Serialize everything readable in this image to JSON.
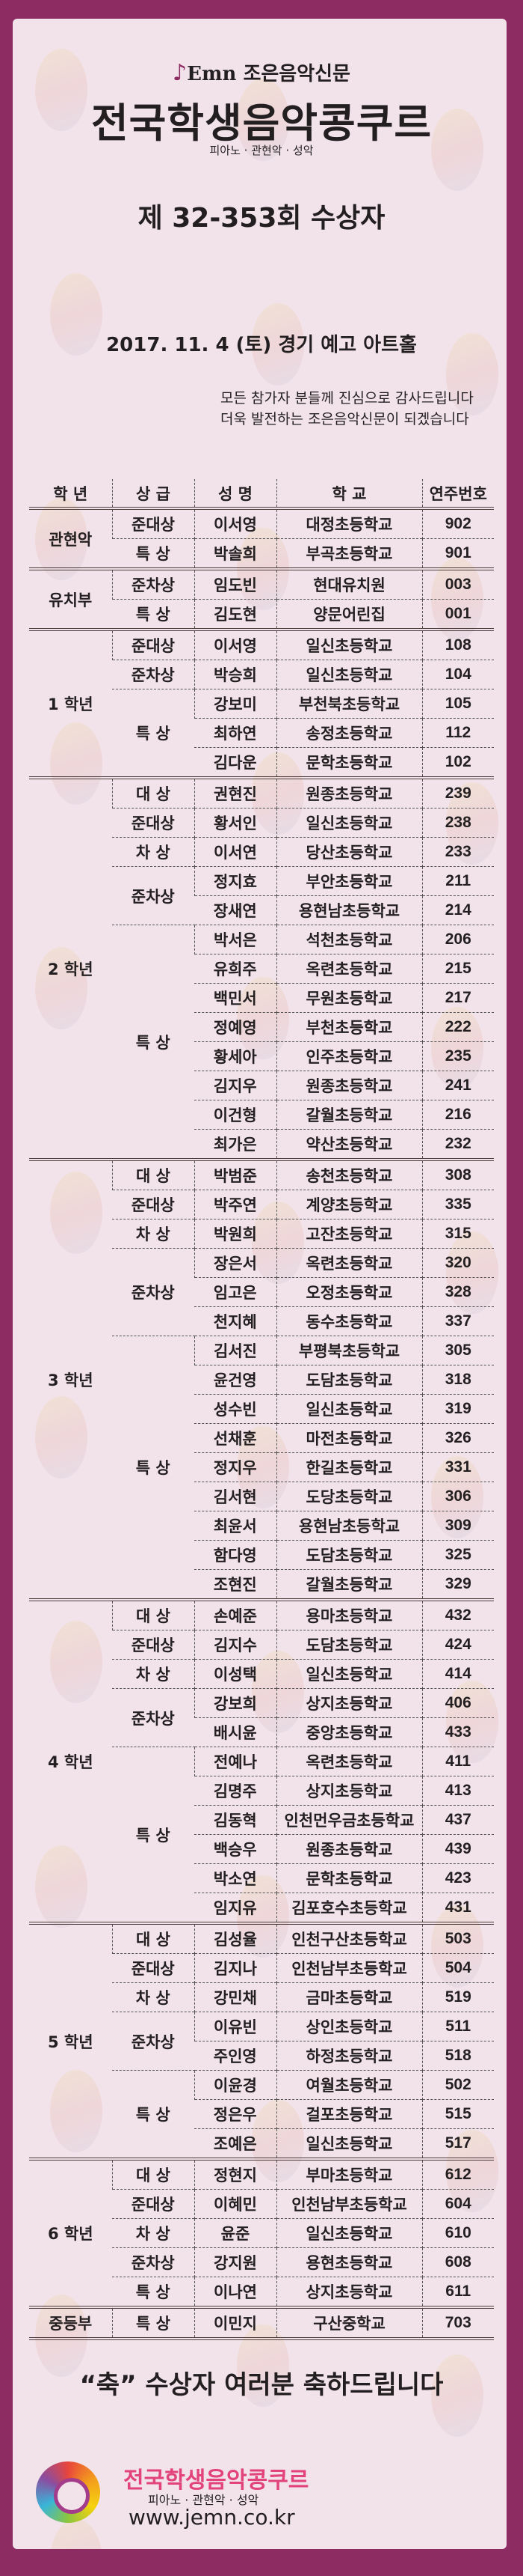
{
  "header": {
    "brand_mark": "Emn",
    "brand_name": "조은음악신문",
    "title": "전국학생음악콩쿠르",
    "subtitle": "피아노 · 관현악 · 성악",
    "round": "제 32-353회  수상자",
    "date_venue": "2017. 11. 4 (토)  경기 예고 아트홀",
    "thanks_1": "모든 참가자 분들께 진심으로 감사드립니다",
    "thanks_2": "더욱 발전하는 조은음악신문이 되겠습니다"
  },
  "table": {
    "columns": [
      "학  년",
      "상  급",
      "성  명",
      "학  교",
      "연주번호"
    ],
    "groups": [
      {
        "grade": "관현악",
        "awards": [
          {
            "award": "준대상",
            "entries": [
              {
                "name": "이서영",
                "school": "대정초등학교",
                "number": "902"
              }
            ]
          },
          {
            "award": "특  상",
            "entries": [
              {
                "name": "박솔희",
                "school": "부곡초등학교",
                "number": "901"
              }
            ]
          }
        ]
      },
      {
        "grade": "유치부",
        "awards": [
          {
            "award": "준차상",
            "entries": [
              {
                "name": "임도빈",
                "school": "현대유치원",
                "number": "003"
              }
            ]
          },
          {
            "award": "특  상",
            "entries": [
              {
                "name": "김도현",
                "school": "양문어린집",
                "number": "001"
              }
            ]
          }
        ]
      },
      {
        "grade": "1 학년",
        "awards": [
          {
            "award": "준대상",
            "entries": [
              {
                "name": "이서영",
                "school": "일신초등학교",
                "number": "108"
              }
            ]
          },
          {
            "award": "준차상",
            "entries": [
              {
                "name": "박승희",
                "school": "일신초등학교",
                "number": "104"
              }
            ]
          },
          {
            "award": "특  상",
            "entries": [
              {
                "name": "강보미",
                "school": "부천북초등학교",
                "number": "105"
              },
              {
                "name": "최하연",
                "school": "송정초등학교",
                "number": "112"
              },
              {
                "name": "김다운",
                "school": "문학초등학교",
                "number": "102"
              }
            ]
          }
        ]
      },
      {
        "grade": "2 학년",
        "awards": [
          {
            "award": "대  상",
            "entries": [
              {
                "name": "권현진",
                "school": "원종초등학교",
                "number": "239"
              }
            ]
          },
          {
            "award": "준대상",
            "entries": [
              {
                "name": "황서인",
                "school": "일신초등학교",
                "number": "238"
              }
            ]
          },
          {
            "award": "차  상",
            "entries": [
              {
                "name": "이서연",
                "school": "당산초등학교",
                "number": "233"
              }
            ]
          },
          {
            "award": "준차상",
            "entries": [
              {
                "name": "정지효",
                "school": "부안초등학교",
                "number": "211"
              },
              {
                "name": "장새연",
                "school": "용현남초등학교",
                "number": "214"
              }
            ]
          },
          {
            "award": "특  상",
            "entries": [
              {
                "name": "박서은",
                "school": "석천초등학교",
                "number": "206"
              },
              {
                "name": "유희주",
                "school": "옥련초등학교",
                "number": "215"
              },
              {
                "name": "백민서",
                "school": "무원초등학교",
                "number": "217"
              },
              {
                "name": "정예영",
                "school": "부천초등학교",
                "number": "222"
              },
              {
                "name": "황세아",
                "school": "인주초등학교",
                "number": "235"
              },
              {
                "name": "김지우",
                "school": "원종초등학교",
                "number": "241"
              },
              {
                "name": "이건형",
                "school": "갈월초등학교",
                "number": "216"
              },
              {
                "name": "최가은",
                "school": "약산초등학교",
                "number": "232"
              }
            ]
          }
        ]
      },
      {
        "grade": "3 학년",
        "awards": [
          {
            "award": "대  상",
            "entries": [
              {
                "name": "박범준",
                "school": "송천초등학교",
                "number": "308"
              }
            ]
          },
          {
            "award": "준대상",
            "entries": [
              {
                "name": "박주연",
                "school": "계양초등학교",
                "number": "335"
              }
            ]
          },
          {
            "award": "차  상",
            "entries": [
              {
                "name": "박원희",
                "school": "고잔초등학교",
                "number": "315"
              }
            ]
          },
          {
            "award": "준차상",
            "entries": [
              {
                "name": "장은서",
                "school": "옥련초등학교",
                "number": "320"
              },
              {
                "name": "임고은",
                "school": "오정초등학교",
                "number": "328"
              },
              {
                "name": "천지혜",
                "school": "동수초등학교",
                "number": "337"
              }
            ]
          },
          {
            "award": "특  상",
            "entries": [
              {
                "name": "김서진",
                "school": "부평북초등학교",
                "number": "305"
              },
              {
                "name": "윤건영",
                "school": "도담초등학교",
                "number": "318"
              },
              {
                "name": "성수빈",
                "school": "일신초등학교",
                "number": "319"
              },
              {
                "name": "선채훈",
                "school": "마전초등학교",
                "number": "326"
              },
              {
                "name": "정지우",
                "school": "한길초등학교",
                "number": "331"
              },
              {
                "name": "김서현",
                "school": "도당초등학교",
                "number": "306"
              },
              {
                "name": "최윤서",
                "school": "용현남초등학교",
                "number": "309"
              },
              {
                "name": "함다영",
                "school": "도담초등학교",
                "number": "325"
              },
              {
                "name": "조현진",
                "school": "갈월초등학교",
                "number": "329"
              }
            ]
          }
        ]
      },
      {
        "grade": "4 학년",
        "awards": [
          {
            "award": "대  상",
            "entries": [
              {
                "name": "손예준",
                "school": "용마초등학교",
                "number": "432"
              }
            ]
          },
          {
            "award": "준대상",
            "entries": [
              {
                "name": "김지수",
                "school": "도담초등학교",
                "number": "424"
              }
            ]
          },
          {
            "award": "차  상",
            "entries": [
              {
                "name": "이성택",
                "school": "일신초등학교",
                "number": "414"
              }
            ]
          },
          {
            "award": "준차상",
            "entries": [
              {
                "name": "강보희",
                "school": "상지초등학교",
                "number": "406"
              },
              {
                "name": "배시윤",
                "school": "중앙초등학교",
                "number": "433"
              }
            ]
          },
          {
            "award": "특  상",
            "entries": [
              {
                "name": "전예나",
                "school": "옥련초등학교",
                "number": "411"
              },
              {
                "name": "김명주",
                "school": "상지초등학교",
                "number": "413"
              },
              {
                "name": "김동혁",
                "school": "인천먼우금초등학교",
                "number": "437"
              },
              {
                "name": "백승우",
                "school": "원종초등학교",
                "number": "439"
              },
              {
                "name": "박소연",
                "school": "문학초등학교",
                "number": "423"
              },
              {
                "name": "임지유",
                "school": "김포호수초등학교",
                "number": "431"
              }
            ]
          }
        ]
      },
      {
        "grade": "5 학년",
        "awards": [
          {
            "award": "대  상",
            "entries": [
              {
                "name": "김성율",
                "school": "인천구산초등학교",
                "number": "503"
              }
            ]
          },
          {
            "award": "준대상",
            "entries": [
              {
                "name": "김지나",
                "school": "인천남부초등학교",
                "number": "504"
              }
            ]
          },
          {
            "award": "차  상",
            "entries": [
              {
                "name": "강민채",
                "school": "금마초등학교",
                "number": "519"
              }
            ]
          },
          {
            "award": "준차상",
            "entries": [
              {
                "name": "이유빈",
                "school": "상인초등학교",
                "number": "511"
              },
              {
                "name": "주인영",
                "school": "하정초등학교",
                "number": "518"
              }
            ]
          },
          {
            "award": "특  상",
            "entries": [
              {
                "name": "이윤경",
                "school": "여월초등학교",
                "number": "502"
              },
              {
                "name": "정은우",
                "school": "걸포초등학교",
                "number": "515"
              },
              {
                "name": "조예은",
                "school": "일신초등학교",
                "number": "517"
              }
            ]
          }
        ]
      },
      {
        "grade": "6 학년",
        "awards": [
          {
            "award": "대  상",
            "entries": [
              {
                "name": "정현지",
                "school": "부마초등학교",
                "number": "612"
              }
            ]
          },
          {
            "award": "준대상",
            "entries": [
              {
                "name": "이혜민",
                "school": "인천남부초등학교",
                "number": "604"
              }
            ]
          },
          {
            "award": "차  상",
            "entries": [
              {
                "name": "윤준",
                "school": "일신초등학교",
                "number": "610"
              }
            ]
          },
          {
            "award": "준차상",
            "entries": [
              {
                "name": "강지원",
                "school": "용현초등학교",
                "number": "608"
              }
            ]
          },
          {
            "award": "특  상",
            "entries": [
              {
                "name": "이나연",
                "school": "상지초등학교",
                "number": "611"
              }
            ]
          }
        ]
      },
      {
        "grade": "중등부",
        "awards": [
          {
            "award": "특  상",
            "entries": [
              {
                "name": "이민지",
                "school": "구산중학교",
                "number": "703"
              }
            ]
          }
        ]
      }
    ]
  },
  "footer": {
    "congrats": "“축”  수상자 여러분 축하드립니다",
    "logo_title": "전국학생음악콩쿠르",
    "logo_subtitle": "피아노 · 관현악 · 성악",
    "url": "www.jemn.co.kr"
  },
  "colors": {
    "frame": "#8d2c63",
    "panel": "#f2e3ea",
    "footer_title": "#e2437a"
  }
}
